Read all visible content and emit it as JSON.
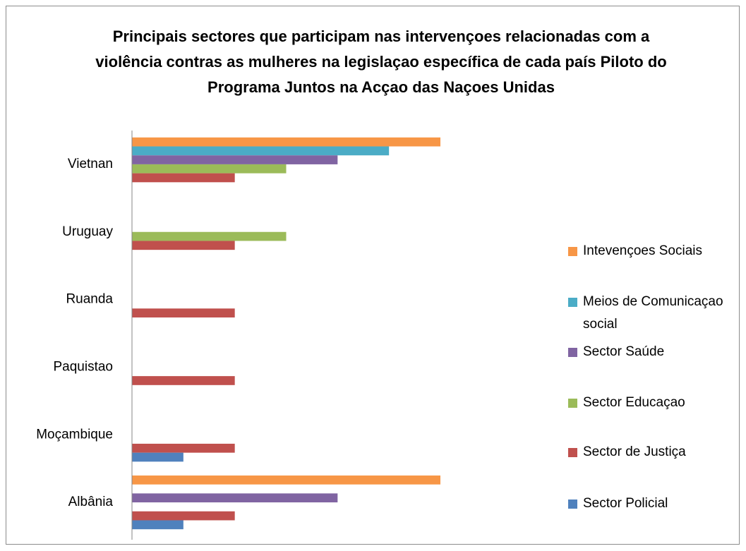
{
  "chart_data": {
    "type": "hbar",
    "title": "Principais sectores que participam nas intervençoes relacionadas com a violência contras as mulheres na legislaçao específica de cada país Piloto do Programa Juntos na Acçao das Naçoes Unidas",
    "categories": [
      "Albânia",
      "Moçambique",
      "Paquistao",
      "Ruanda",
      "Uruguay",
      "Vietnan"
    ],
    "xlim": [
      0,
      6
    ],
    "series": [
      {
        "name": "Intevençoes Sociais",
        "color": "#f79646",
        "values": [
          6,
          null,
          null,
          null,
          null,
          6
        ]
      },
      {
        "name": "Meios de Comunicaçao social",
        "color": "#4bacc6",
        "values": [
          null,
          null,
          null,
          null,
          null,
          5
        ]
      },
      {
        "name": "Sector Saúde",
        "color": "#8064a2",
        "values": [
          4,
          null,
          null,
          null,
          null,
          4
        ]
      },
      {
        "name": "Sector Educaçao",
        "color": "#9bbb59",
        "values": [
          null,
          null,
          null,
          null,
          3,
          3
        ]
      },
      {
        "name": "Sector de Justiça",
        "color": "#c0504d",
        "values": [
          2,
          2,
          2,
          2,
          2,
          2
        ]
      },
      {
        "name": "Sector Policial",
        "color": "#4f81bd",
        "values": [
          1,
          1,
          null,
          null,
          null,
          null
        ]
      }
    ]
  }
}
